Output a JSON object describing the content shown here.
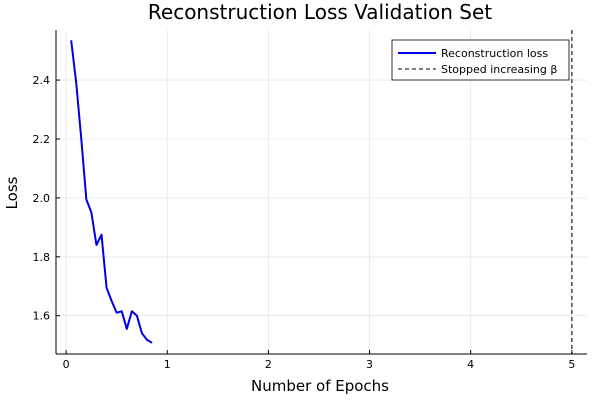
{
  "chart_data": {
    "type": "line",
    "title": "Reconstruction Loss Validation Set",
    "xlabel": "Number of Epochs",
    "ylabel": "Loss",
    "xlim": [
      -0.1,
      5.15
    ],
    "ylim": [
      1.47,
      2.57
    ],
    "xticks": [
      0,
      1,
      2,
      3,
      4,
      5
    ],
    "yticks": [
      1.6,
      1.8,
      2.0,
      2.2,
      2.4
    ],
    "ytick_labels": [
      "1.6",
      "1.8",
      "2.0",
      "2.2",
      "2.4"
    ],
    "grid": true,
    "legend_position": "top-right",
    "series": [
      {
        "name": "Reconstruction loss",
        "color": "#0000e6",
        "style": "solid",
        "x": [
          0.05,
          0.1,
          0.15,
          0.2,
          0.25,
          0.3,
          0.35,
          0.4,
          0.45,
          0.5,
          0.55,
          0.6,
          0.65,
          0.7,
          0.75,
          0.8,
          0.85
        ],
        "y": [
          2.535,
          2.39,
          2.2,
          1.995,
          1.95,
          1.84,
          1.875,
          1.695,
          1.65,
          1.61,
          1.615,
          1.555,
          1.615,
          1.6,
          1.54,
          1.518,
          1.508
        ]
      },
      {
        "name": "Stopped increasing β",
        "color": "#555555",
        "style": "dashed",
        "vline": 5.0
      }
    ]
  }
}
